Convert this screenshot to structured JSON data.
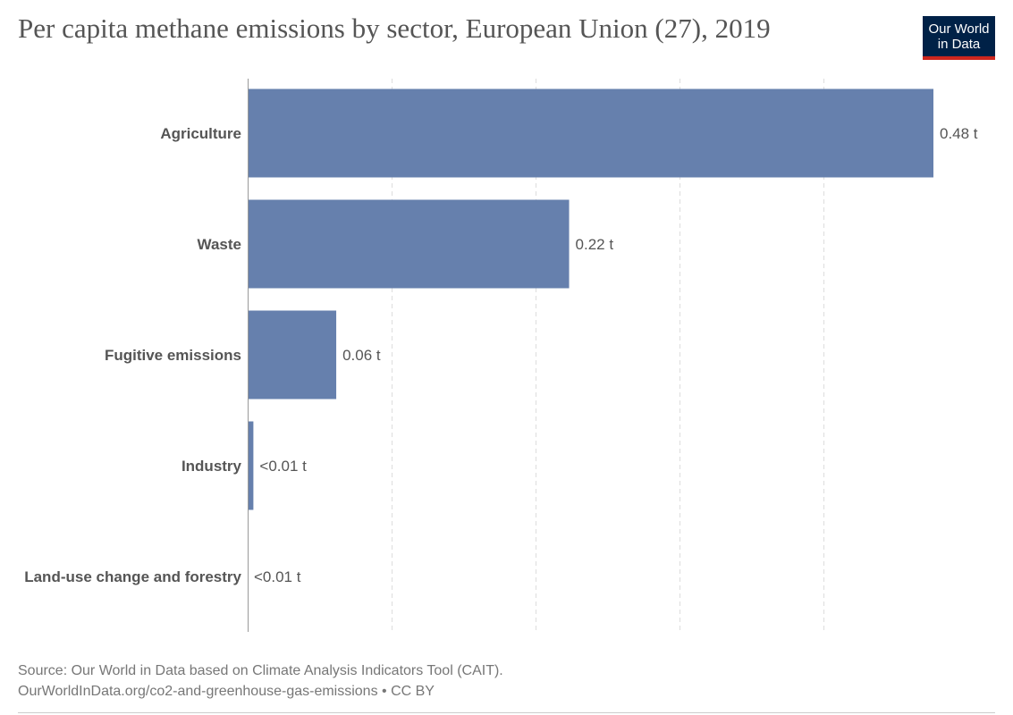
{
  "title": "Per capita methane emissions by sector, European Union (27), 2019",
  "logo": {
    "line1": "Our World",
    "line2": "in Data",
    "bg_color": "#002147",
    "accent_color": "#ce261e"
  },
  "chart_data": {
    "type": "bar",
    "orientation": "horizontal",
    "title": "Per capita methane emissions by sector, European Union (27), 2019",
    "unit": "t",
    "categories": [
      "Agriculture",
      "Waste",
      "Fugitive emissions",
      "Industry",
      "Land-use change and forestry"
    ],
    "values": [
      0.48,
      0.225,
      0.062,
      0.004,
      0.0
    ],
    "value_labels": [
      "0.48 t",
      "0.22 t",
      "0.06 t",
      "<0.01 t",
      "<0.01 t"
    ],
    "xlim": [
      0,
      0.5
    ],
    "gridlines": [
      0.1,
      0.2,
      0.3,
      0.4
    ],
    "grid": true,
    "bar_color": "#6680ad",
    "xlabel": "",
    "ylabel": ""
  },
  "footer": {
    "source": "Source: Our World in Data based on Climate Analysis Indicators Tool (CAIT).",
    "url_license": "OurWorldInData.org/co2-and-greenhouse-gas-emissions • CC BY"
  }
}
